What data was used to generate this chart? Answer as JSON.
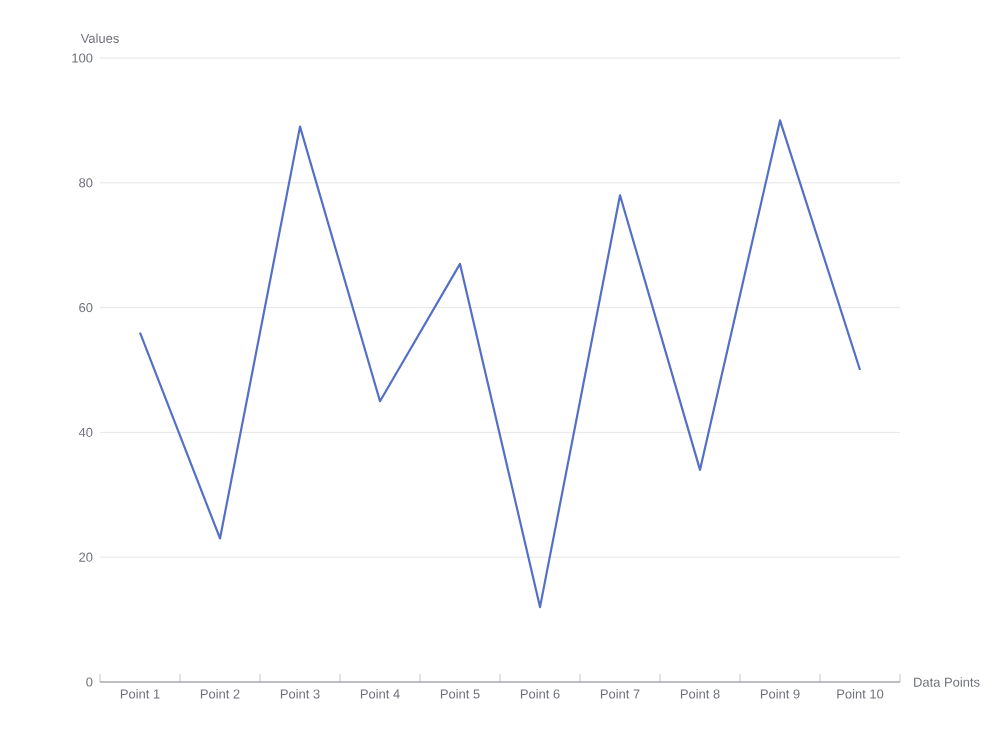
{
  "chart_data": {
    "type": "line",
    "xlabel": "Data Points",
    "ylabel": "Values",
    "categories": [
      "Point 1",
      "Point 2",
      "Point 3",
      "Point 4",
      "Point 5",
      "Point 6",
      "Point 7",
      "Point 8",
      "Point 9",
      "Point 10"
    ],
    "values": [
      56,
      23,
      89,
      45,
      67,
      12,
      78,
      34,
      90,
      50
    ],
    "color": "#5470c6",
    "ylim": [
      0,
      100
    ],
    "yticks": [
      0,
      20,
      40,
      60,
      80,
      100
    ],
    "grid": "y",
    "marker": "none",
    "line_style": "solid"
  }
}
